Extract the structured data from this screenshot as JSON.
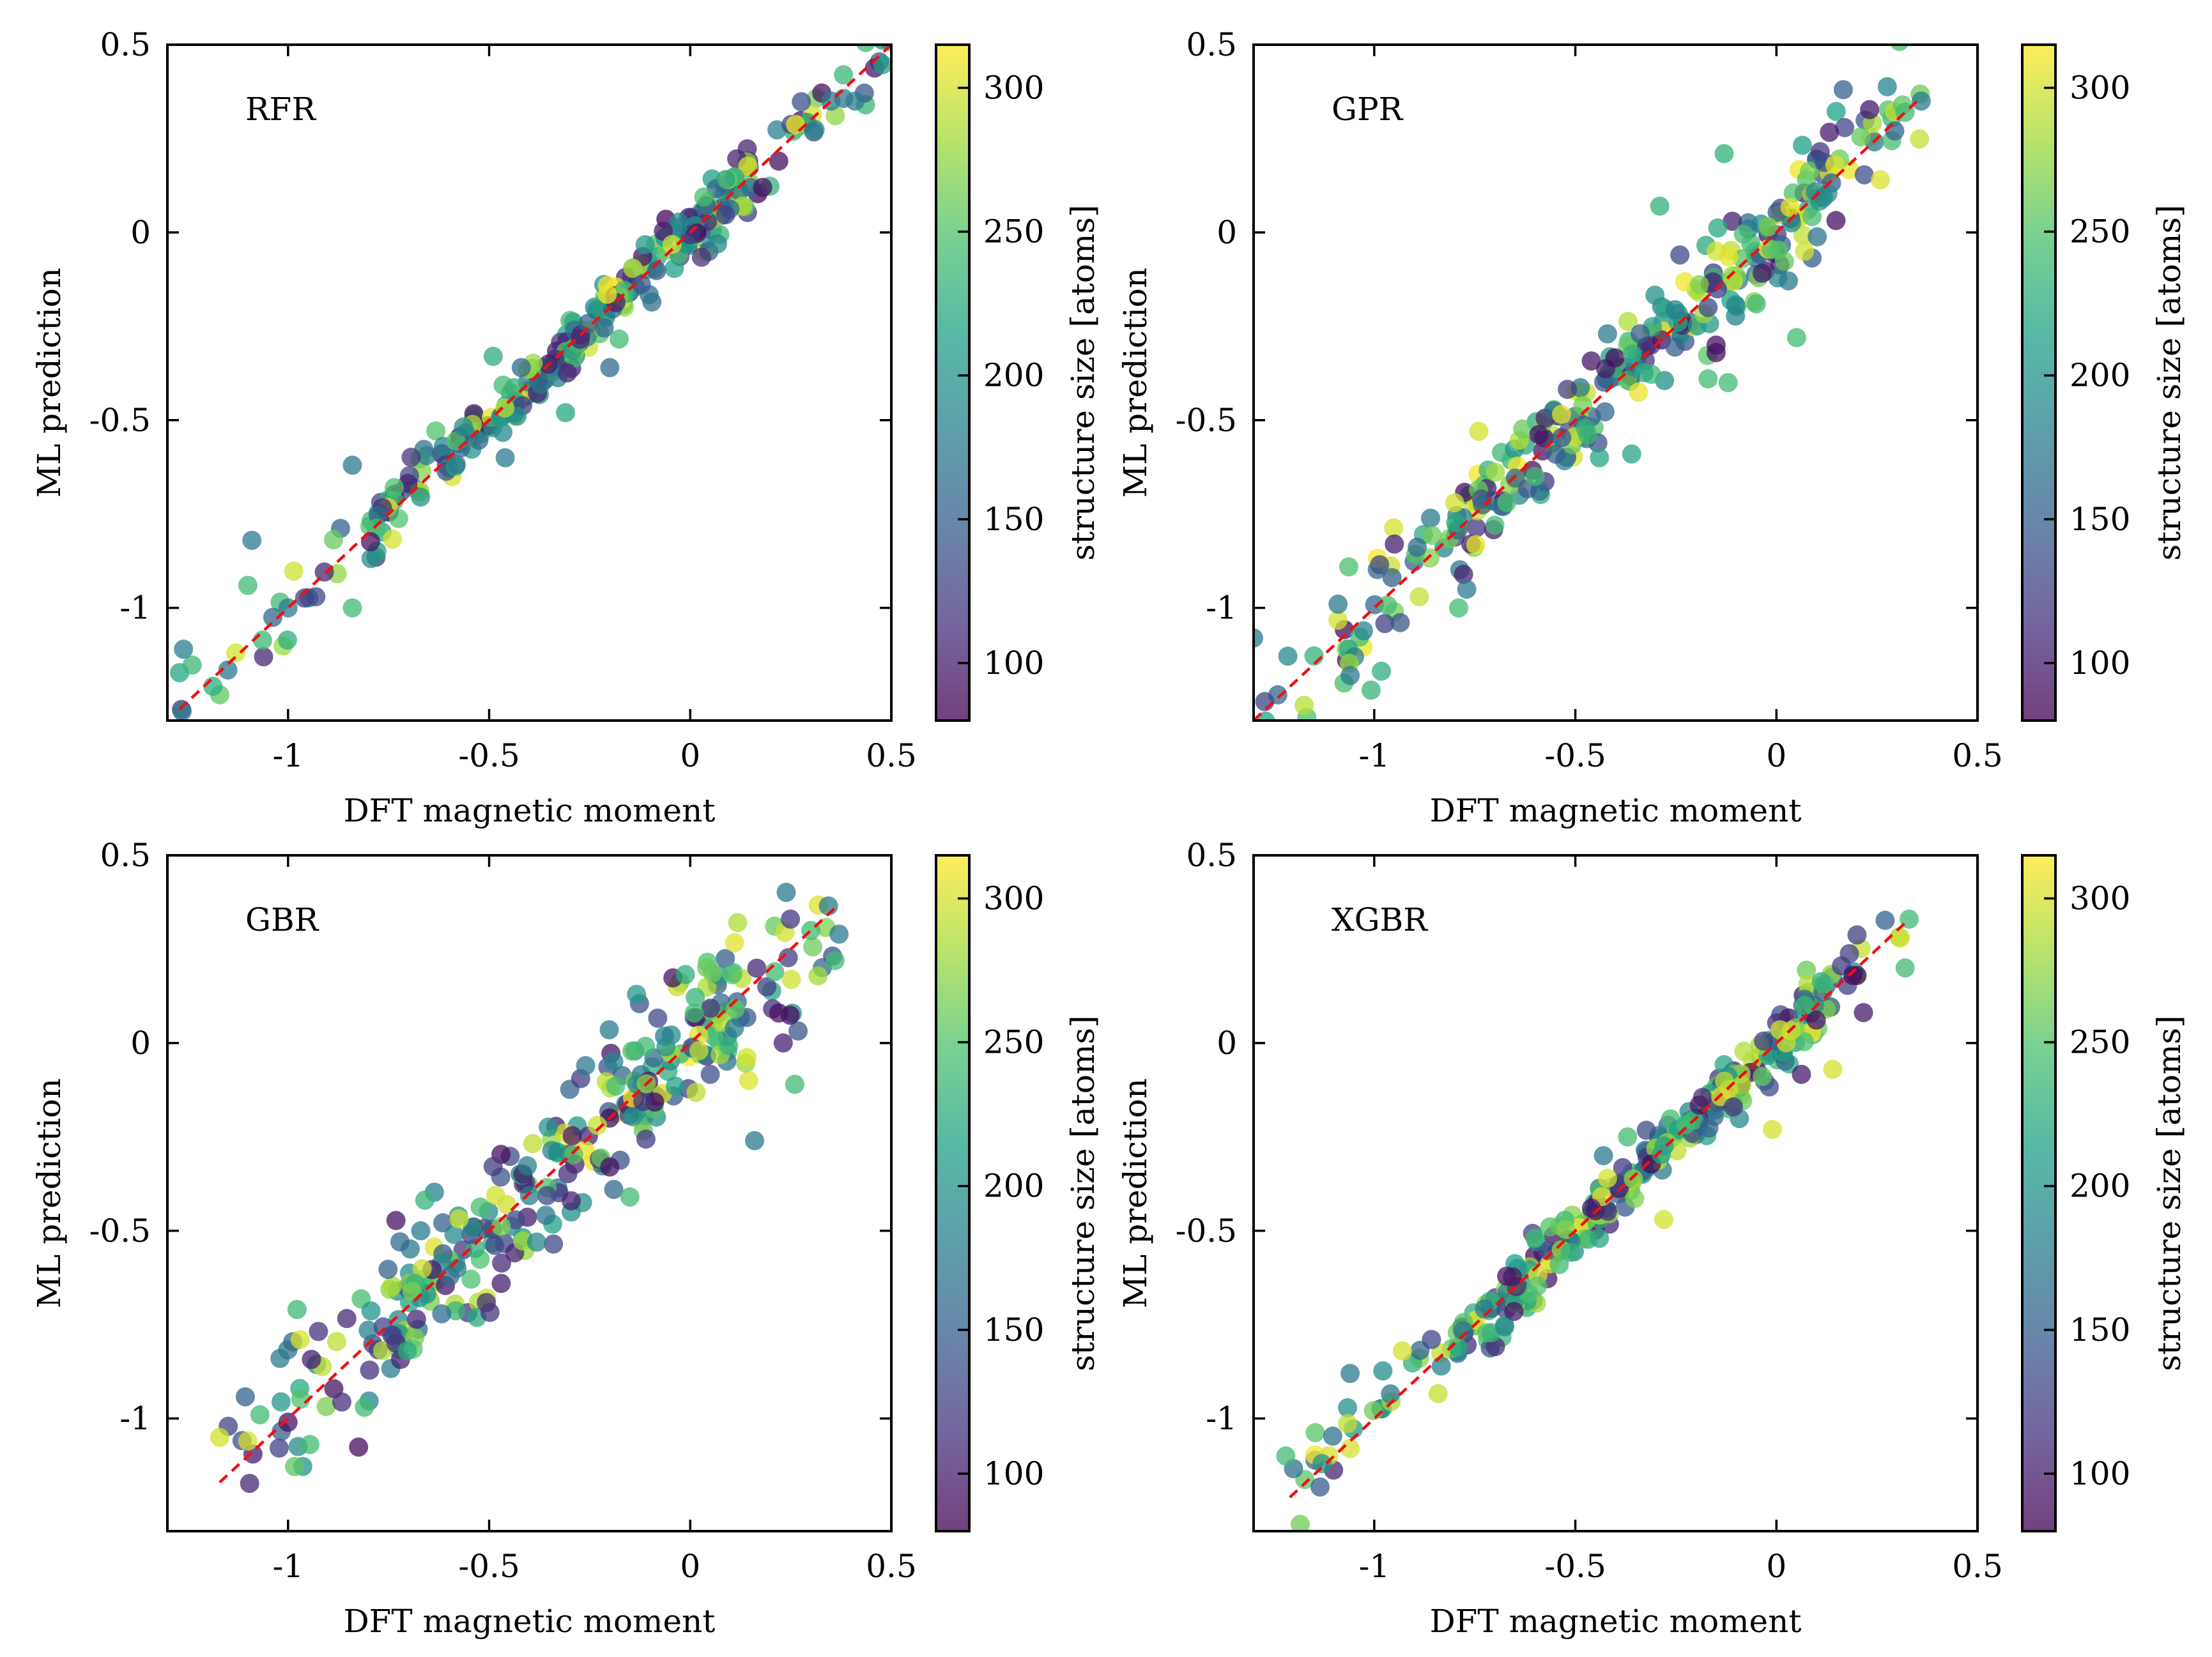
{
  "colors": {
    "line": "#ee1111",
    "axis": "#000000",
    "viridis_stops": [
      "#440154",
      "#46327e",
      "#365c8d",
      "#277f8e",
      "#1fa187",
      "#4ac16d",
      "#a0da39",
      "#fde725"
    ]
  },
  "colorbar": {
    "label": "structure size [atoms]",
    "range": [
      80,
      315
    ],
    "ticks": [
      100,
      150,
      200,
      250,
      300
    ],
    "tick_labels": [
      "100",
      "150",
      "200",
      "250",
      "300"
    ]
  },
  "axes_common": {
    "xlabel": "DFT magnetic moment",
    "ylabel": "ML prediction",
    "xlim": [
      -1.3,
      0.5
    ],
    "ylim": [
      -1.3,
      0.5
    ],
    "xticks": [
      -1,
      -0.5,
      0,
      0.5
    ],
    "xtick_labels": [
      "-1",
      "-0.5",
      "0",
      "0.5"
    ],
    "yticks": [
      -1,
      -0.5,
      0,
      0.5
    ],
    "ytick_labels": [
      "-1",
      "-0.5",
      "0",
      "0.5"
    ]
  },
  "chart_data": [
    {
      "type": "scatter",
      "title": "RFR",
      "xlabel": "DFT magnetic moment",
      "ylabel": "ML prediction",
      "xlim": [
        -1.3,
        0.5
      ],
      "ylim": [
        -1.3,
        0.5
      ],
      "reference_line": {
        "x": [
          -1.27,
          0.5
        ],
        "y": [
          -1.27,
          0.5
        ]
      },
      "spread": 0.035,
      "outliers": [
        [
          -1.26,
          -1.11,
          180
        ],
        [
          -0.84,
          -0.62,
          175
        ],
        [
          -1.09,
          -0.82,
          175
        ],
        [
          -1.1,
          -0.94,
          240
        ],
        [
          -0.84,
          -1.0,
          240
        ],
        [
          -0.42,
          -0.36,
          160
        ],
        [
          -0.2,
          -0.36,
          160
        ],
        [
          -0.31,
          -0.48,
          220
        ],
        [
          -0.46,
          -0.6,
          175
        ],
        [
          -0.49,
          -0.33,
          225
        ],
        [
          0.41,
          0.35,
          175
        ],
        [
          0.35,
          0.35,
          175
        ],
        [
          0.22,
          0.19,
          90
        ],
        [
          0.18,
          0.12,
          90
        ],
        [
          -1.13,
          -1.12,
          300
        ],
        [
          -1.0,
          -1.0,
          175
        ]
      ],
      "seed": 11
    },
    {
      "type": "scatter",
      "title": "GPR",
      "xlabel": "DFT magnetic moment",
      "ylabel": "ML prediction",
      "xlim": [
        -1.3,
        0.5
      ],
      "ylim": [
        -1.3,
        0.5
      ],
      "reference_line": {
        "x": [
          -1.3,
          0.36
        ],
        "y": [
          -1.3,
          0.36
        ]
      },
      "spread": 0.06,
      "outliers": [
        [
          -1.3,
          -1.08,
          175
        ],
        [
          -1.06,
          -1.18,
          175
        ],
        [
          -1.09,
          -0.99,
          175
        ],
        [
          -0.79,
          -1.0,
          240
        ],
        [
          -0.77,
          -0.95,
          175
        ],
        [
          -0.95,
          -0.83,
          100
        ],
        [
          -0.13,
          0.21,
          230
        ],
        [
          -0.29,
          0.07,
          230
        ],
        [
          0.05,
          -0.28,
          240
        ],
        [
          -0.05,
          -0.19,
          240
        ],
        [
          -0.15,
          -0.3,
          90
        ],
        [
          -0.15,
          -0.32,
          90
        ],
        [
          -0.42,
          -0.27,
          175
        ],
        [
          -0.24,
          -0.06,
          130
        ],
        [
          -0.12,
          -0.4,
          240
        ],
        [
          -0.17,
          -0.39,
          240
        ],
        [
          -0.44,
          -0.6,
          220
        ],
        [
          -0.36,
          -0.59,
          220
        ],
        [
          0.07,
          -0.05,
          300
        ],
        [
          0.36,
          0.35,
          175
        ],
        [
          0.32,
          0.32,
          240
        ],
        [
          -0.74,
          -0.53,
          300
        ],
        [
          -0.6,
          -0.65,
          240
        ],
        [
          -0.17,
          -0.2,
          130
        ],
        [
          -0.8,
          -0.72,
          300
        ],
        [
          -0.15,
          -0.05,
          300
        ]
      ],
      "seed": 23
    },
    {
      "type": "scatter",
      "title": "GBR",
      "xlabel": "DFT magnetic moment",
      "ylabel": "ML prediction",
      "xlim": [
        -1.3,
        0.5
      ],
      "ylim": [
        -1.3,
        0.5
      ],
      "reference_line": {
        "x": [
          -1.17,
          0.37
        ],
        "y": [
          -1.17,
          0.37
        ]
      },
      "spread": 0.09,
      "outliers": [
        [
          -1.17,
          -1.05,
          300
        ],
        [
          -1.1,
          -1.06,
          300
        ],
        [
          -1.07,
          -0.99,
          240
        ],
        [
          -1.02,
          -0.84,
          175
        ],
        [
          -0.97,
          -0.79,
          300
        ],
        [
          -0.81,
          -0.97,
          240
        ],
        [
          0.37,
          0.29,
          175
        ],
        [
          0.36,
          0.22,
          240
        ],
        [
          0.3,
          0.3,
          240
        ],
        [
          0.26,
          -0.11,
          240
        ],
        [
          0.16,
          -0.26,
          175
        ],
        [
          0.22,
          0.08,
          90
        ],
        [
          0.21,
          0.19,
          240
        ],
        [
          0.11,
          0.04,
          175
        ],
        [
          -0.15,
          -0.41,
          240
        ],
        [
          -0.2,
          -0.33,
          90
        ],
        [
          -0.47,
          -0.64,
          100
        ],
        [
          -0.58,
          -0.6,
          175
        ],
        [
          -0.67,
          -0.5,
          175
        ],
        [
          -0.26,
          -0.06,
          175
        ],
        [
          0.01,
          0.08,
          240
        ],
        [
          -1.0,
          -1.01,
          90
        ]
      ],
      "seed": 37
    },
    {
      "type": "scatter",
      "title": "XGBR",
      "xlabel": "DFT magnetic moment",
      "ylabel": "ML prediction",
      "xlim": [
        -1.3,
        0.5
      ],
      "ylim": [
        -1.3,
        0.5
      ],
      "reference_line": {
        "x": [
          -1.21,
          0.33
        ],
        "y": [
          -1.21,
          0.33
        ]
      },
      "spread": 0.04,
      "outliers": [
        [
          -1.22,
          -1.1,
          240
        ],
        [
          -1.13,
          -1.12,
          200
        ],
        [
          -1.06,
          -1.08,
          300
        ],
        [
          -1.06,
          -0.88,
          175
        ],
        [
          -0.93,
          -0.82,
          300
        ],
        [
          0.33,
          0.33,
          240
        ],
        [
          0.32,
          0.2,
          240
        ],
        [
          0.14,
          -0.07,
          300
        ],
        [
          -0.01,
          -0.23,
          300
        ],
        [
          -0.28,
          -0.47,
          300
        ],
        [
          -0.42,
          -0.36,
          300
        ],
        [
          -0.43,
          -0.3,
          175
        ],
        [
          -0.37,
          -0.25,
          240
        ],
        [
          -0.44,
          -0.52,
          220
        ],
        [
          -0.54,
          -0.59,
          240
        ],
        [
          -0.6,
          -0.52,
          240
        ],
        [
          -0.46,
          -0.44,
          100
        ],
        [
          0.2,
          0.18,
          90
        ],
        [
          0.19,
          0.18,
          90
        ],
        [
          0.07,
          0.1,
          240
        ]
      ],
      "seed": 53
    }
  ]
}
